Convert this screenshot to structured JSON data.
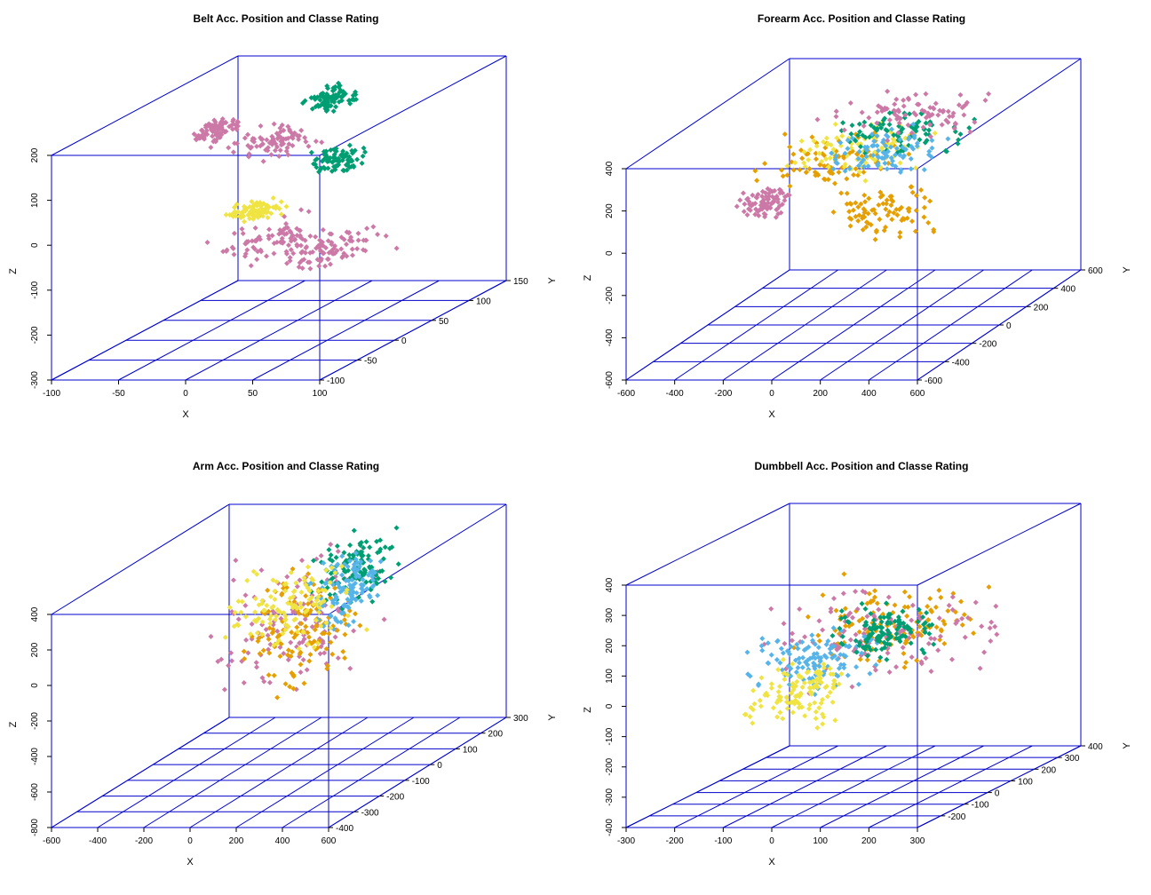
{
  "chart_data": [
    {
      "type": "scatter",
      "title": "Belt Acc. Position and Classe Rating",
      "xlabel": "X",
      "ylabel": "Y",
      "zlabel": "Z",
      "xlim": [
        -100,
        100
      ],
      "ylim": [
        -100,
        150
      ],
      "zlim": [
        -300,
        200
      ],
      "xticks": [
        -100,
        -50,
        0,
        50,
        100
      ],
      "yticks": [
        -100,
        -50,
        0,
        50,
        100,
        150
      ],
      "zticks": [
        -300,
        -200,
        -100,
        0,
        100,
        200
      ],
      "point_count_estimate": 3000,
      "clusters": [
        {
          "color": "#cc79a7",
          "x": [
            -30,
            50
          ],
          "y": [
            -40,
            40
          ],
          "z": [
            -120,
            -30
          ]
        },
        {
          "color": "#cc79a7",
          "x": [
            30,
            90
          ],
          "y": [
            -60,
            40
          ],
          "z": [
            -120,
            -60
          ]
        },
        {
          "color": "#cc79a7",
          "x": [
            -60,
            10
          ],
          "y": [
            30,
            100
          ],
          "z": [
            60,
            120
          ]
        },
        {
          "color": "#009e73",
          "x": [
            -10,
            20
          ],
          "y": [
            60,
            110
          ],
          "z": [
            140,
            190
          ]
        },
        {
          "color": "#009e73",
          "x": [
            10,
            50
          ],
          "y": [
            30,
            70
          ],
          "z": [
            30,
            90
          ]
        },
        {
          "color": "#f0e442",
          "x": [
            -30,
            10
          ],
          "y": [
            -10,
            30
          ],
          "z": [
            -40,
            0
          ]
        },
        {
          "color": "#cc79a7",
          "x": [
            -90,
            -60
          ],
          "y": [
            50,
            100
          ],
          "z": [
            80,
            120
          ]
        }
      ]
    },
    {
      "type": "scatter",
      "title": "Forearm Acc. Position and Classe Rating",
      "xlabel": "X",
      "ylabel": "Y",
      "zlabel": "Z",
      "xlim": [
        -600,
        600
      ],
      "ylim": [
        -600,
        600
      ],
      "zlim": [
        -600,
        400
      ],
      "xticks": [
        -600,
        -400,
        -200,
        0,
        200,
        400,
        600
      ],
      "yticks": [
        -600,
        -400,
        -200,
        0,
        200,
        400,
        600
      ],
      "zticks": [
        -600,
        -400,
        -200,
        0,
        200,
        400
      ],
      "point_count_estimate": 3000,
      "clusters": [
        {
          "color": "#e69f00",
          "x": [
            -450,
            150
          ],
          "y": [
            -100,
            300
          ],
          "z": [
            0,
            250
          ]
        },
        {
          "color": "#f0e442",
          "x": [
            -350,
            250
          ],
          "y": [
            -50,
            350
          ],
          "z": [
            50,
            300
          ]
        },
        {
          "color": "#009e73",
          "x": [
            -250,
            350
          ],
          "y": [
            100,
            400
          ],
          "z": [
            100,
            300
          ]
        },
        {
          "color": "#56b4e9",
          "x": [
            -200,
            300
          ],
          "y": [
            0,
            300
          ],
          "z": [
            50,
            250
          ]
        },
        {
          "color": "#cc79a7",
          "x": [
            -300,
            450
          ],
          "y": [
            200,
            500
          ],
          "z": [
            150,
            350
          ]
        },
        {
          "color": "#e69f00",
          "x": [
            -50,
            450
          ],
          "y": [
            -250,
            100
          ],
          "z": [
            -150,
            100
          ]
        },
        {
          "color": "#cc79a7",
          "x": [
            -400,
            -200
          ],
          "y": [
            -200,
            0
          ],
          "z": [
            -50,
            100
          ]
        }
      ]
    },
    {
      "type": "scatter",
      "title": "Arm Acc. Position and Classe Rating",
      "xlabel": "X",
      "ylabel": "Y",
      "zlabel": "Z",
      "xlim": [
        -600,
        600
      ],
      "ylim": [
        -400,
        300
      ],
      "zlim": [
        -800,
        400
      ],
      "xticks": [
        -600,
        -400,
        -200,
        0,
        200,
        400,
        600
      ],
      "yticks": [
        -400,
        -300,
        -200,
        -100,
        0,
        100,
        200,
        300
      ],
      "zticks": [
        -800,
        -600,
        -400,
        -200,
        0,
        200,
        400
      ],
      "point_count_estimate": 3000,
      "clusters": [
        {
          "color": "#cc79a7",
          "x": [
            -300,
            300
          ],
          "y": [
            -200,
            200
          ],
          "z": [
            -400,
            400
          ]
        },
        {
          "color": "#e69f00",
          "x": [
            -200,
            250
          ],
          "y": [
            -150,
            150
          ],
          "z": [
            -400,
            300
          ]
        },
        {
          "color": "#009e73",
          "x": [
            0,
            300
          ],
          "y": [
            0,
            250
          ],
          "z": [
            0,
            400
          ]
        },
        {
          "color": "#56b4e9",
          "x": [
            0,
            250
          ],
          "y": [
            0,
            200
          ],
          "z": [
            -100,
            300
          ]
        },
        {
          "color": "#f0e442",
          "x": [
            -350,
            200
          ],
          "y": [
            -100,
            200
          ],
          "z": [
            -200,
            300
          ]
        }
      ]
    },
    {
      "type": "scatter",
      "title": "Dumbbell Acc. Position and Classe Rating",
      "xlabel": "X",
      "ylabel": "Y",
      "zlabel": "Z",
      "xlim": [
        -300,
        300
      ],
      "ylim": [
        -300,
        400
      ],
      "zlim": [
        -400,
        400
      ],
      "xticks": [
        -300,
        -200,
        -100,
        0,
        100,
        200,
        300
      ],
      "yticks": [
        -200,
        -100,
        0,
        100,
        200,
        300,
        400
      ],
      "zticks": [
        -400,
        -300,
        -200,
        -100,
        0,
        100,
        200,
        300,
        400
      ],
      "point_count_estimate": 3000,
      "clusters": [
        {
          "color": "#e69f00",
          "x": [
            -150,
            250
          ],
          "y": [
            -100,
            250
          ],
          "z": [
            0,
            250
          ]
        },
        {
          "color": "#cc79a7",
          "x": [
            -200,
            300
          ],
          "y": [
            -150,
            250
          ],
          "z": [
            -50,
            250
          ]
        },
        {
          "color": "#56b4e9",
          "x": [
            -200,
            100
          ],
          "y": [
            -150,
            100
          ],
          "z": [
            -50,
            150
          ]
        },
        {
          "color": "#009e73",
          "x": [
            -50,
            150
          ],
          "y": [
            0,
            150
          ],
          "z": [
            0,
            200
          ]
        },
        {
          "color": "#f0e442",
          "x": [
            -150,
            50
          ],
          "y": [
            -200,
            50
          ],
          "z": [
            -150,
            50
          ]
        }
      ]
    }
  ]
}
